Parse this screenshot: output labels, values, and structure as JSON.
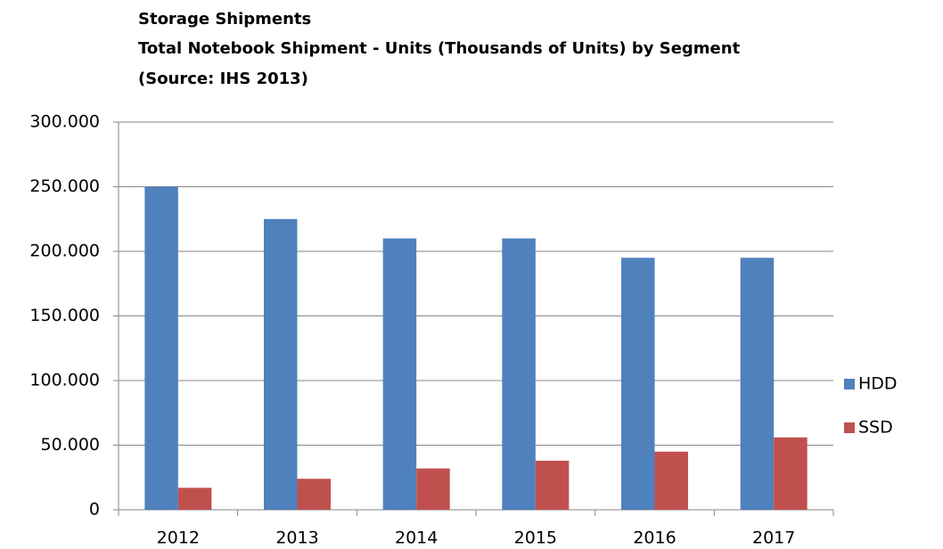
{
  "chart_data": {
    "type": "bar",
    "title": "Storage Shipments",
    "subtitle": "Total Notebook Shipment - Units (Thousands of Units) by Segment",
    "source": "(Source: IHS 2013)",
    "categories": [
      "2012",
      "2013",
      "2014",
      "2015",
      "2016",
      "2017"
    ],
    "series": [
      {
        "name": "HDD",
        "color": "#4f81bd",
        "values": [
          250000,
          225000,
          210000,
          210000,
          195000,
          195000
        ]
      },
      {
        "name": "SSD",
        "color": "#c0504d",
        "values": [
          17000,
          24000,
          32000,
          38000,
          45000,
          56000
        ]
      }
    ],
    "ylim": [
      0,
      300000
    ],
    "yticks": [
      0,
      {
        "value": 50000,
        "label": "50.000"
      },
      {
        "value": 100000,
        "label": "100.000"
      },
      {
        "value": 150000,
        "label": "150.000"
      },
      {
        "value": 200000,
        "label": "200.000"
      },
      {
        "value": 250000,
        "label": "250.000"
      },
      {
        "value": 300000,
        "label": "300.000"
      }
    ],
    "grid": true,
    "legend": "right"
  }
}
